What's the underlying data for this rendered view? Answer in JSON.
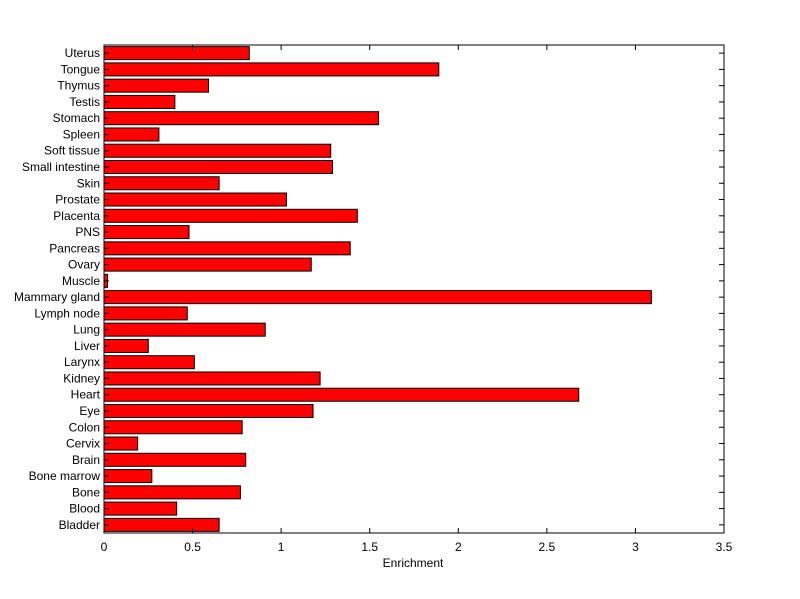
{
  "chart_data": {
    "type": "bar",
    "orientation": "horizontal",
    "title": "",
    "xlabel": "Enrichment",
    "ylabel": "",
    "xlim": [
      0,
      3.5
    ],
    "xticks": [
      0,
      0.5,
      1,
      1.5,
      2,
      2.5,
      3,
      3.5
    ],
    "xtick_labels": [
      "0",
      "0.5",
      "1",
      "1.5",
      "2",
      "2.5",
      "3",
      "3.5"
    ],
    "grid": false,
    "bar_color": "#ff0000",
    "edge_color": "#000000",
    "categories": [
      "Uterus",
      "Tongue",
      "Thymus",
      "Testis",
      "Stomach",
      "Spleen",
      "Soft tissue",
      "Small intestine",
      "Skin",
      "Prostate",
      "Placenta",
      "PNS",
      "Pancreas",
      "Ovary",
      "Muscle",
      "Mammary gland",
      "Lymph node",
      "Lung",
      "Liver",
      "Larynx",
      "Kidney",
      "Heart",
      "Eye",
      "Colon",
      "Cervix",
      "Brain",
      "Bone marrow",
      "Bone",
      "Blood",
      "Bladder"
    ],
    "values": [
      0.82,
      1.89,
      0.59,
      0.4,
      1.55,
      0.31,
      1.28,
      1.29,
      0.65,
      1.03,
      1.43,
      0.48,
      1.39,
      1.17,
      0.02,
      3.09,
      0.47,
      0.91,
      0.25,
      0.51,
      1.22,
      2.68,
      1.18,
      0.78,
      0.19,
      0.8,
      0.27,
      0.77,
      0.41,
      0.65
    ]
  }
}
